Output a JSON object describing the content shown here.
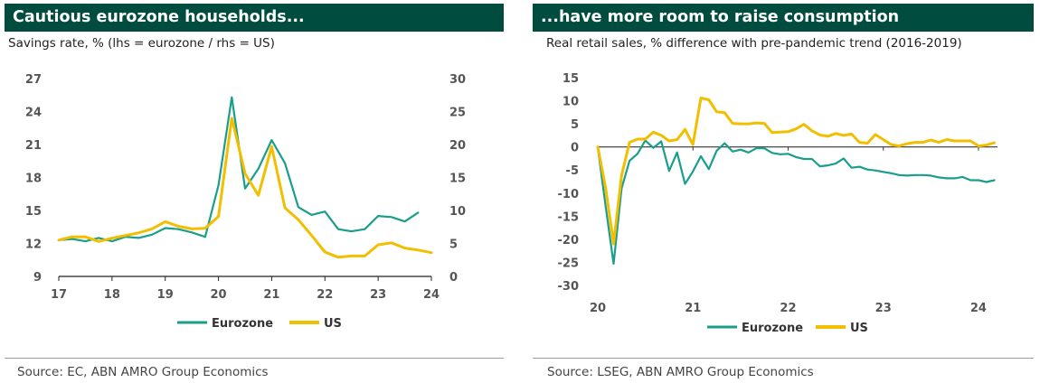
{
  "charts": {
    "left": {
      "title": "Cautious eurozone households...",
      "subtitle": "Savings rate, % (lhs = eurozone / rhs = US)",
      "source": "Source: EC, ABN AMRO Group Economics"
    },
    "right": {
      "title": "...have more room to raise consumption",
      "subtitle": "Real retail sales, % difference with pre-pandemic trend (2016-2019)",
      "source": "Source: LSEG, ABN AMRO Group Economics"
    }
  },
  "colors": {
    "eurozone": "#1A9E8C",
    "us": "#F2BE00",
    "title_bg": "#004D40"
  },
  "chart_data": [
    {
      "type": "line",
      "title": "Cautious eurozone households...",
      "subtitle": "Savings rate, % (lhs = eurozone / rhs = US)",
      "x_ticks": [
        "17",
        "18",
        "19",
        "20",
        "21",
        "22",
        "23",
        "24"
      ],
      "y_left": {
        "ticks": [
          "27",
          "24",
          "21",
          "18",
          "15",
          "12",
          "9"
        ],
        "range": [
          9,
          27
        ]
      },
      "y_right": {
        "ticks": [
          "30",
          "25",
          "20",
          "15",
          "10",
          "5",
          "0"
        ],
        "range": [
          0,
          30
        ]
      },
      "grid": false,
      "legend": "bottom",
      "series": [
        {
          "name": "Eurozone",
          "axis": "left",
          "x": [
            17.0,
            17.25,
            17.5,
            17.75,
            18.0,
            18.25,
            18.5,
            18.75,
            19.0,
            19.25,
            19.5,
            19.75,
            20.0,
            20.25,
            20.5,
            20.75,
            21.0,
            21.25,
            21.5,
            21.75,
            22.0,
            22.25,
            22.5,
            22.75,
            23.0,
            23.25,
            23.5,
            23.75
          ],
          "values": [
            12.3,
            12.4,
            12.2,
            12.5,
            12.2,
            12.6,
            12.5,
            12.8,
            13.4,
            13.3,
            13.0,
            12.6,
            17.3,
            25.3,
            17.0,
            18.8,
            21.4,
            19.3,
            15.3,
            14.6,
            14.9,
            13.3,
            13.1,
            13.3,
            14.5,
            14.4,
            14.0,
            14.8
          ]
        },
        {
          "name": "US",
          "axis": "right",
          "x": [
            17.0,
            17.25,
            17.5,
            17.75,
            18.0,
            18.25,
            18.5,
            18.75,
            19.0,
            19.25,
            19.5,
            19.75,
            20.0,
            20.25,
            20.5,
            20.75,
            21.0,
            21.25,
            21.5,
            21.75,
            22.0,
            22.25,
            22.5,
            22.75,
            23.0,
            23.25,
            23.5,
            23.75,
            24.0
          ],
          "values": [
            5.5,
            6.0,
            6.0,
            5.3,
            5.8,
            6.2,
            6.6,
            7.2,
            8.3,
            7.6,
            7.2,
            7.3,
            9.1,
            24.0,
            15.6,
            12.3,
            19.7,
            10.4,
            8.6,
            6.2,
            3.7,
            2.9,
            3.1,
            3.1,
            4.8,
            5.1,
            4.3,
            4.0,
            3.6
          ]
        }
      ]
    },
    {
      "type": "line",
      "title": "...have more room to raise consumption",
      "subtitle": "Real retail sales, % difference with pre-pandemic trend (2016-2019)",
      "x_ticks": [
        "20",
        "21",
        "22",
        "23",
        "24"
      ],
      "y": {
        "ticks": [
          "15",
          "10",
          "5",
          "0",
          "-5",
          "-10",
          "-15",
          "-20",
          "-25",
          "-30"
        ],
        "range": [
          -30,
          15
        ]
      },
      "grid": false,
      "legend": "bottom",
      "series": [
        {
          "name": "Eurozone",
          "x": [
            20.0,
            20.0833,
            20.1667,
            20.25,
            20.3333,
            20.4167,
            20.5,
            20.5833,
            20.6667,
            20.75,
            20.8333,
            20.9167,
            21.0,
            21.0833,
            21.1667,
            21.25,
            21.3333,
            21.4167,
            21.5,
            21.5833,
            21.6667,
            21.75,
            21.8333,
            21.9167,
            22.0,
            22.0833,
            22.1667,
            22.25,
            22.3333,
            22.4167,
            22.5,
            22.5833,
            22.6667,
            22.75,
            22.8333,
            22.9167,
            23.0,
            23.0833,
            23.1667,
            23.25,
            23.3333,
            23.4167,
            23.5,
            23.5833,
            23.6667,
            23.75,
            23.8333,
            23.9167,
            24.0,
            24.0833,
            24.1667
          ],
          "values": [
            0.0,
            -13.0,
            -25.3,
            -9.0,
            -3.0,
            -1.5,
            1.4,
            -0.2,
            1.2,
            -5.2,
            -1.2,
            -8.0,
            -5.3,
            -2.0,
            -4.8,
            -0.8,
            0.8,
            -1.0,
            -0.6,
            -1.2,
            -0.3,
            -0.3,
            -1.3,
            -1.6,
            -1.5,
            -2.2,
            -2.6,
            -2.6,
            -4.2,
            -4.0,
            -3.6,
            -2.5,
            -4.5,
            -4.3,
            -4.9,
            -5.1,
            -5.4,
            -5.7,
            -6.1,
            -6.2,
            -6.1,
            -6.1,
            -6.2,
            -6.6,
            -6.8,
            -6.8,
            -6.5,
            -7.2,
            -7.2,
            -7.6,
            -7.2
          ]
        },
        {
          "name": "US",
          "x": [
            20.0,
            20.0833,
            20.1667,
            20.25,
            20.3333,
            20.4167,
            20.5,
            20.5833,
            20.6667,
            20.75,
            20.8333,
            20.9167,
            21.0,
            21.0833,
            21.1667,
            21.25,
            21.3333,
            21.4167,
            21.5,
            21.5833,
            21.6667,
            21.75,
            21.8333,
            21.9167,
            22.0,
            22.0833,
            22.1667,
            22.25,
            22.3333,
            22.4167,
            22.5,
            22.5833,
            22.6667,
            22.75,
            22.8333,
            22.9167,
            23.0,
            23.0833,
            23.1667,
            23.25,
            23.3333,
            23.4167,
            23.5,
            23.5833,
            23.6667,
            23.75,
            23.8333,
            23.9167,
            24.0,
            24.0833,
            24.1667
          ],
          "values": [
            0.0,
            -9.0,
            -21.0,
            -6.2,
            1.0,
            1.7,
            1.7,
            3.2,
            2.5,
            1.3,
            1.6,
            3.8,
            0.5,
            10.6,
            10.2,
            7.6,
            7.4,
            5.1,
            5.0,
            5.0,
            5.2,
            5.1,
            3.1,
            3.2,
            3.3,
            3.9,
            4.9,
            3.5,
            2.6,
            2.3,
            2.9,
            2.5,
            2.8,
            1.0,
            0.8,
            2.7,
            1.6,
            0.5,
            0.2,
            0.7,
            1.0,
            1.0,
            1.5,
            1.0,
            1.6,
            1.3,
            1.3,
            1.3,
            0.2,
            0.4,
            0.9
          ]
        }
      ]
    }
  ]
}
